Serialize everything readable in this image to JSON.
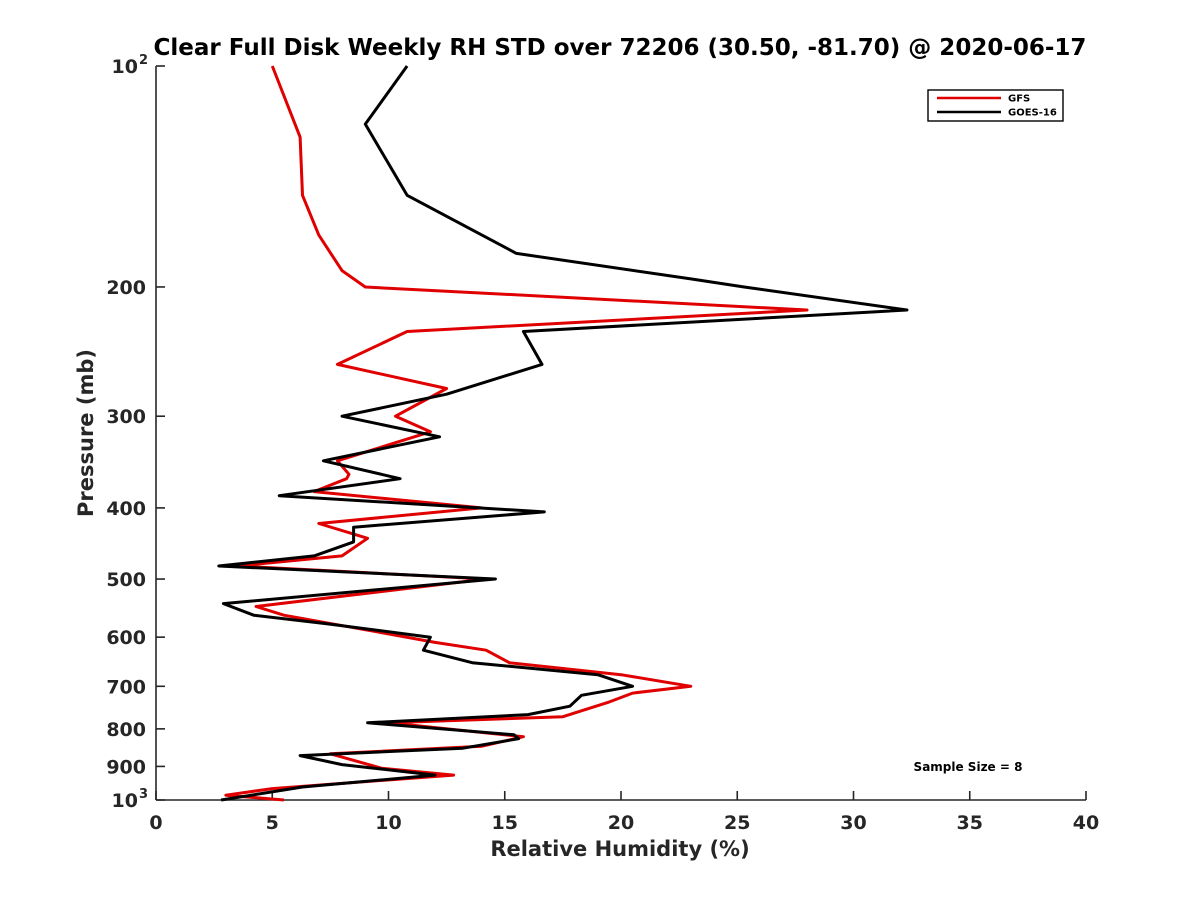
{
  "chart_data": {
    "type": "line",
    "title": "Clear Full Disk Weekly RH STD over 72206 (30.50, -81.70) @ 2020-06-17",
    "xlabel": "Relative Humidity (%)",
    "ylabel": "Pressure (mb)",
    "xlim": [
      0,
      40
    ],
    "ylim": [
      100,
      1000
    ],
    "y_scale": "log",
    "y_reversed": true,
    "x_ticks": [
      0,
      5,
      10,
      15,
      20,
      25,
      30,
      35,
      40
    ],
    "y_ticks": [
      {
        "value": 100,
        "label": "10",
        "sup": "2"
      },
      {
        "value": 200,
        "label": "200",
        "sup": ""
      },
      {
        "value": 300,
        "label": "300",
        "sup": ""
      },
      {
        "value": 400,
        "label": "400",
        "sup": ""
      },
      {
        "value": 500,
        "label": "500",
        "sup": ""
      },
      {
        "value": 600,
        "label": "600",
        "sup": ""
      },
      {
        "value": 700,
        "label": "700",
        "sup": ""
      },
      {
        "value": 800,
        "label": "800",
        "sup": ""
      },
      {
        "value": 900,
        "label": "900",
        "sup": ""
      },
      {
        "value": 1000,
        "label": "10",
        "sup": "3"
      }
    ],
    "legend_position": "top-right",
    "annotation": "Sample Size = 8",
    "series": [
      {
        "name": "GFS",
        "color": "#e00000",
        "points": [
          [
            5.0,
            100
          ],
          [
            6.2,
            125
          ],
          [
            6.3,
            150
          ],
          [
            7.0,
            170
          ],
          [
            8.0,
            190
          ],
          [
            9.0,
            200
          ],
          [
            28.0,
            215
          ],
          [
            10.8,
            230
          ],
          [
            7.8,
            255
          ],
          [
            12.5,
            275
          ],
          [
            10.3,
            300
          ],
          [
            11.8,
            315
          ],
          [
            7.8,
            345
          ],
          [
            8.3,
            360
          ],
          [
            8.2,
            365
          ],
          [
            6.8,
            380
          ],
          [
            14.0,
            400
          ],
          [
            7.0,
            420
          ],
          [
            9.1,
            440
          ],
          [
            8.0,
            465
          ],
          [
            3.5,
            480
          ],
          [
            14.2,
            500
          ],
          [
            4.3,
            545
          ],
          [
            5.5,
            560
          ],
          [
            9.5,
            590
          ],
          [
            12.0,
            610
          ],
          [
            14.2,
            625
          ],
          [
            15.2,
            650
          ],
          [
            20.0,
            675
          ],
          [
            23.0,
            700
          ],
          [
            20.5,
            715
          ],
          [
            19.5,
            735
          ],
          [
            17.5,
            770
          ],
          [
            10.0,
            785
          ],
          [
            15.8,
            820
          ],
          [
            14.0,
            845
          ],
          [
            7.5,
            865
          ],
          [
            9.7,
            905
          ],
          [
            12.8,
            925
          ],
          [
            5.0,
            965
          ],
          [
            3.0,
            985
          ],
          [
            5.5,
            1000
          ]
        ]
      },
      {
        "name": "GOES-16",
        "color": "#000000",
        "points": [
          [
            10.8,
            100
          ],
          [
            9.0,
            120
          ],
          [
            10.8,
            150
          ],
          [
            15.5,
            180
          ],
          [
            23.0,
            195
          ],
          [
            25.3,
            200
          ],
          [
            32.3,
            215
          ],
          [
            15.8,
            230
          ],
          [
            16.6,
            255
          ],
          [
            12.5,
            280
          ],
          [
            8.0,
            300
          ],
          [
            12.2,
            320
          ],
          [
            7.2,
            345
          ],
          [
            10.5,
            365
          ],
          [
            5.3,
            385
          ],
          [
            16.7,
            405
          ],
          [
            8.5,
            425
          ],
          [
            8.5,
            445
          ],
          [
            6.8,
            465
          ],
          [
            2.7,
            480
          ],
          [
            14.6,
            500
          ],
          [
            2.9,
            540
          ],
          [
            4.2,
            560
          ],
          [
            7.3,
            575
          ],
          [
            11.8,
            600
          ],
          [
            11.5,
            625
          ],
          [
            13.6,
            650
          ],
          [
            19.0,
            675
          ],
          [
            20.5,
            700
          ],
          [
            18.3,
            720
          ],
          [
            17.8,
            745
          ],
          [
            16.0,
            765
          ],
          [
            9.1,
            785
          ],
          [
            15.4,
            815
          ],
          [
            15.6,
            825
          ],
          [
            13.2,
            850
          ],
          [
            6.2,
            870
          ],
          [
            8.0,
            895
          ],
          [
            12.0,
            925
          ],
          [
            6.3,
            960
          ],
          [
            2.8,
            1000
          ]
        ]
      }
    ]
  }
}
